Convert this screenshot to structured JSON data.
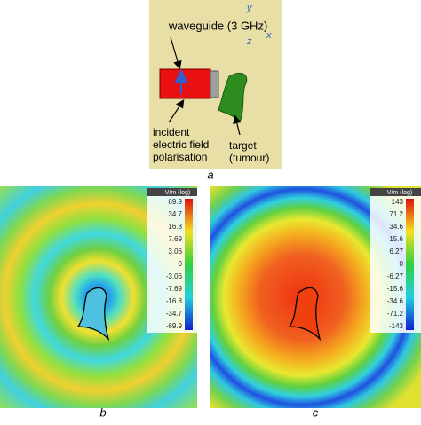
{
  "panel_a": {
    "label": "a",
    "waveguide": "waveguide (3 GHz)",
    "polarisation": [
      "incident",
      "electric field",
      "polarisation"
    ],
    "target": [
      "target",
      "(tumour)"
    ],
    "axes": {
      "y": "y",
      "z": "z",
      "x": "x"
    }
  },
  "panel_b": {
    "label": "b",
    "colorbar": {
      "title": "V/m (log)",
      "ticks": [
        "69.9",
        "34.7",
        "16.8",
        "7.69",
        "3.06",
        "0",
        "-3.06",
        "-7.69",
        "-16.8",
        "-34.7",
        "-69.9"
      ]
    }
  },
  "panel_c": {
    "label": "c",
    "colorbar": {
      "title": "V/m (log)",
      "ticks": [
        "143",
        "71.2",
        "34.6",
        "15.6",
        "6.27",
        "0",
        "-6.27",
        "-15.6",
        "-34.6",
        "-71.2",
        "-143"
      ]
    }
  }
}
